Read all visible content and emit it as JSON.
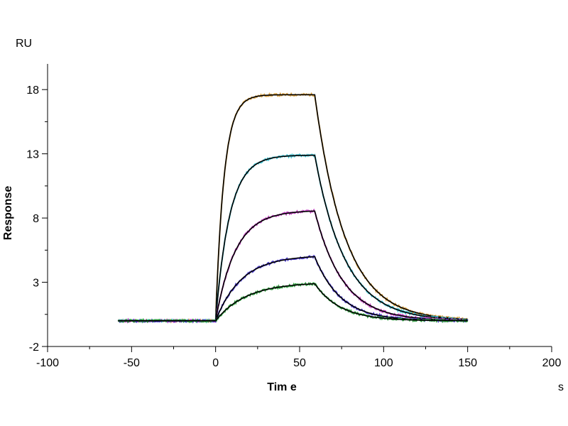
{
  "chart_data": {
    "type": "line",
    "title": "",
    "xlabel": "Tim e",
    "ylabel": "Response",
    "x_unit": "s",
    "y_unit": "RU",
    "xlim": [
      -100,
      200
    ],
    "ylim": [
      -2,
      20
    ],
    "x_ticks": [
      -100,
      -50,
      0,
      50,
      100,
      150,
      200
    ],
    "y_ticks": [
      -2,
      3,
      8,
      13,
      18
    ],
    "grid": false,
    "legend": "none",
    "fit_color": "#000000",
    "injection_start": 0,
    "dissociation_start": 59,
    "baseline": 0,
    "series": [
      {
        "plateau": 17.6,
        "kon": 0.2,
        "koff": 0.055,
        "fit": true,
        "color": "#d8a040"
      },
      {
        "plateau": 12.9,
        "kon": 0.12,
        "koff": 0.055,
        "fit": true,
        "color": "#40c0d0"
      },
      {
        "plateau": 8.6,
        "kon": 0.085,
        "koff": 0.06,
        "fit": true,
        "color": "#c040c0"
      },
      {
        "plateau": 5.1,
        "kon": 0.065,
        "koff": 0.065,
        "fit": true,
        "color": "#5040d0"
      },
      {
        "plateau": 3.0,
        "kon": 0.055,
        "koff": 0.065,
        "fit": true,
        "color": "#30a040"
      }
    ]
  }
}
